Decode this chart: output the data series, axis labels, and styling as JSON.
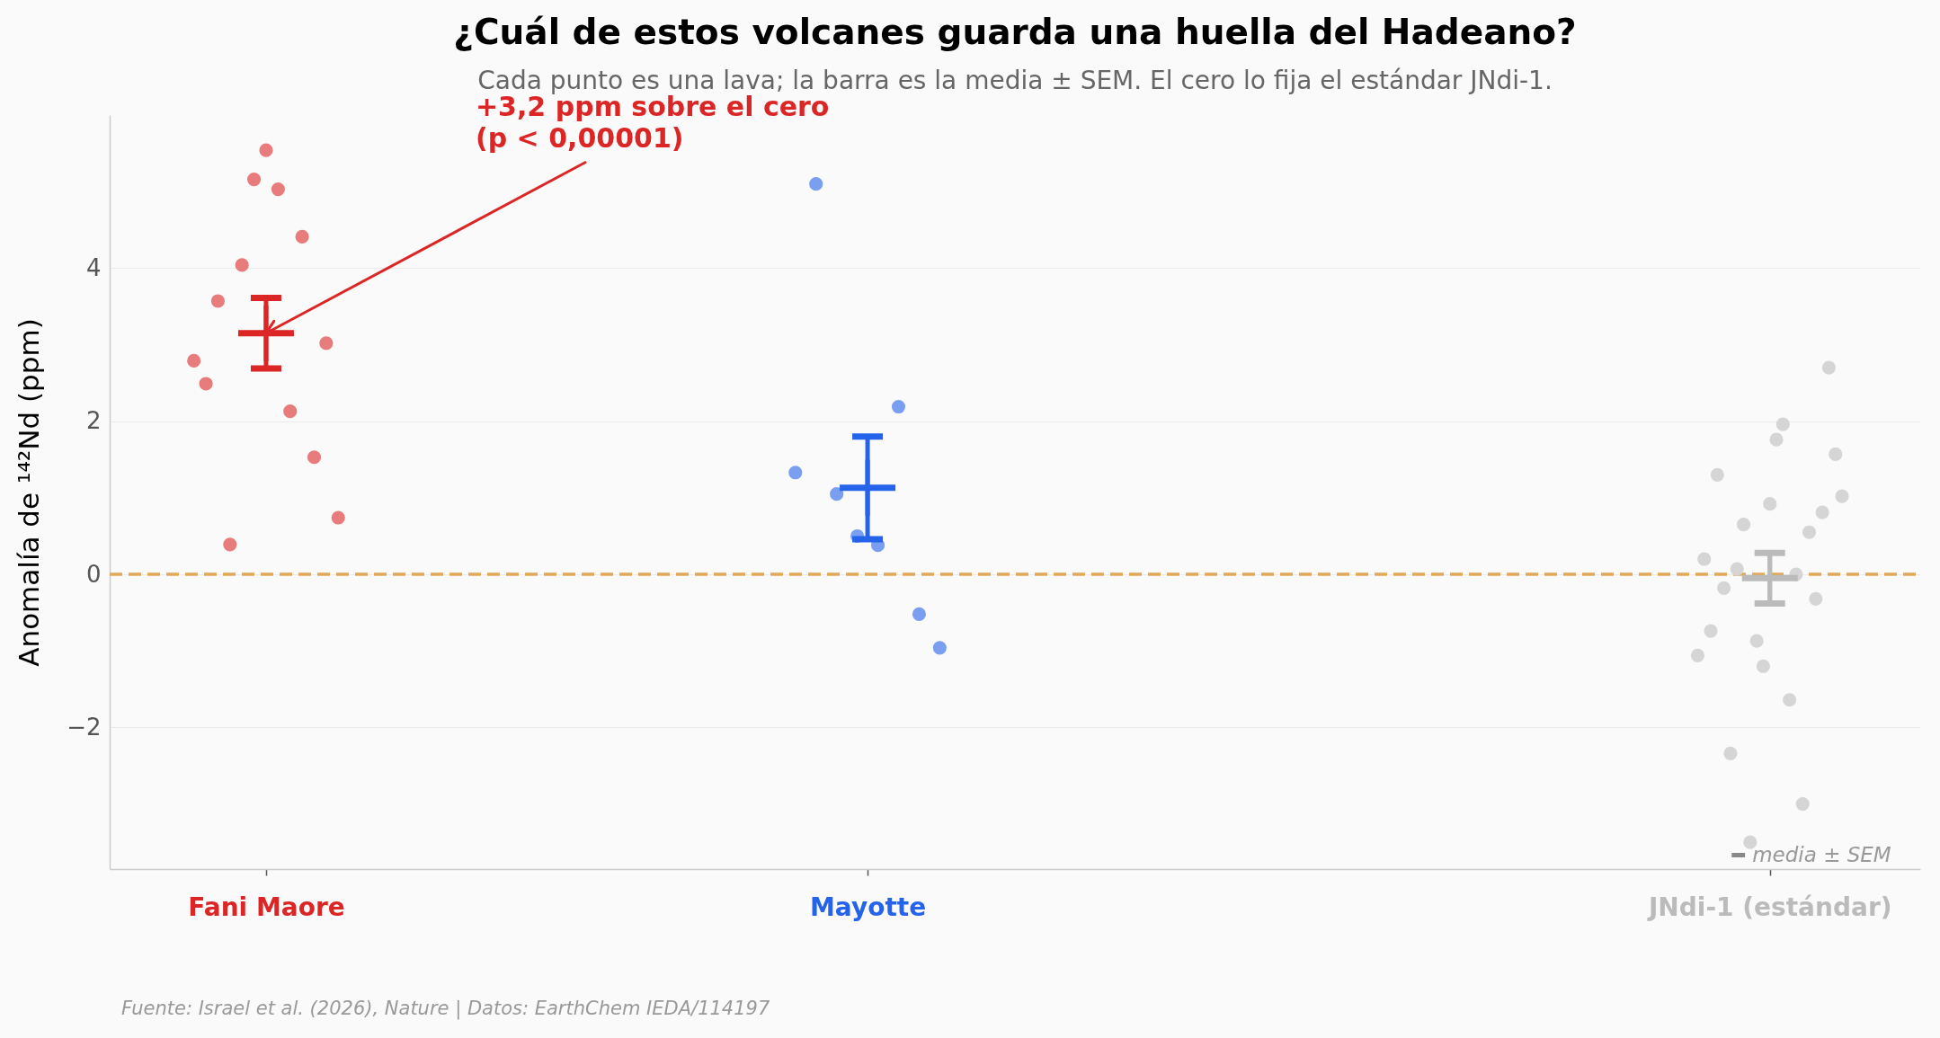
{
  "chart_data": {
    "type": "scatter",
    "title": "¿Cuál de estos volcanes guarda una huella del Hadeano?",
    "subtitle": "Cada punto es una lava; la barra es la media ± SEM. El cero lo fija el estándar JNdi-1.",
    "ylabel": "Anomalía de ¹⁴²Nd (ppm)",
    "annotations": [
      {
        "text": "+3,2 ppm sobre el cero\n(p < 0,00001)",
        "x": "Fani Maore",
        "y": 3.15
      },
      "Fuente: Israel et al. (2026), Nature | Datos: EarthChem IEDA/114197"
    ],
    "categories": [
      "Fani Maore",
      "Mayotte",
      "JNdi-1 (estándar)"
    ],
    "ylim": [
      -3.85,
      6.0
    ],
    "yticks": [
      -2,
      0,
      2,
      4
    ],
    "grid": "y",
    "legend": "bottom right",
    "marker": "circle",
    "ref_lines": [
      {
        "axis": "y",
        "value": 0,
        "color": "#e3a857",
        "line_style": "dashed"
      }
    ],
    "series": [
      {
        "color": "#e87b7b",
        "x": [
          "Fani Maore",
          "Fani Maore",
          "Fani Maore",
          "Fani Maore",
          "Fani Maore",
          "Fani Maore",
          "Fani Maore",
          "Fani Maore",
          "Fani Maore",
          "Fani Maore",
          "Fani Maore",
          "Fani Maore",
          "Fani Maore"
        ],
        "values": [
          2.79,
          2.49,
          3.57,
          0.39,
          4.04,
          5.16,
          5.54,
          5.03,
          2.13,
          4.41,
          1.53,
          3.02,
          0.74
        ]
      },
      {
        "color": "#7a9ff1",
        "x": [
          "Mayotte",
          "Mayotte",
          "Mayotte",
          "Mayotte",
          "Mayotte",
          "Mayotte",
          "Mayotte",
          "Mayotte"
        ],
        "values": [
          1.33,
          5.1,
          1.05,
          0.5,
          0.38,
          2.19,
          -0.52,
          -0.96
        ]
      },
      {
        "color": "#d5d5d5",
        "x": [
          "JNdi-1 (estándar)",
          "JNdi-1 (estándar)",
          "JNdi-1 (estándar)",
          "JNdi-1 (estándar)",
          "JNdi-1 (estándar)",
          "JNdi-1 (estándar)",
          "JNdi-1 (estándar)",
          "JNdi-1 (estándar)",
          "JNdi-1 (estándar)",
          "JNdi-1 (estándar)",
          "JNdi-1 (estándar)",
          "JNdi-1 (estándar)",
          "JNdi-1 (estándar)",
          "JNdi-1 (estándar)",
          "JNdi-1 (estándar)",
          "JNdi-1 (estándar)",
          "JNdi-1 (estándar)",
          "JNdi-1 (estándar)",
          "JNdi-1 (estándar)",
          "JNdi-1 (estándar)",
          "JNdi-1 (estándar)",
          "JNdi-1 (estándar)",
          "JNdi-1 (estándar)"
        ],
        "values": [
          -1.06,
          0.2,
          -0.74,
          1.3,
          -0.18,
          -2.34,
          0.07,
          0.65,
          -3.5,
          -0.87,
          -1.2,
          0.92,
          1.76,
          1.96,
          -1.64,
          0.0,
          -3.0,
          0.55,
          -0.32,
          0.81,
          2.7,
          1.57,
          1.02
        ]
      },
      {
        "name": "media ± SEM",
        "color": "#888888",
        "colors": [
          "#dc2626",
          "#2563eb",
          "#bbbbbb"
        ],
        "marker": "cross",
        "x": [
          "Fani Maore",
          "Mayotte",
          "JNdi-1 (estándar)"
        ],
        "values": [
          3.15,
          1.13,
          -0.05
        ],
        "errors": [
          0.46,
          0.67,
          0.33
        ]
      }
    ]
  }
}
